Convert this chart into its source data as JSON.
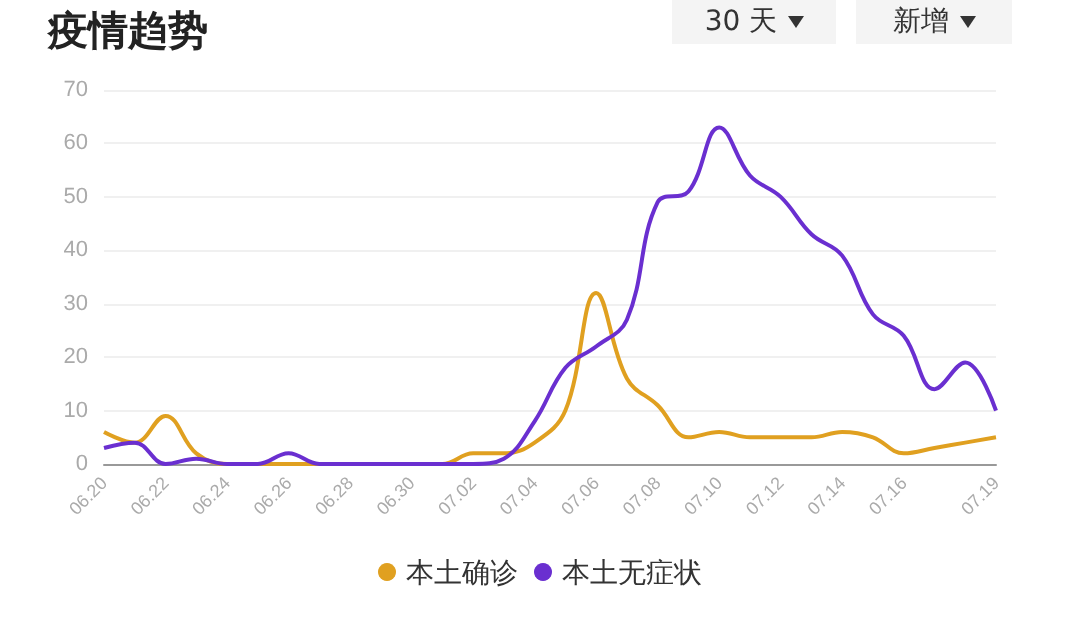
{
  "chart_data": {
    "type": "line",
    "title": "疫情趋势",
    "annotations": [
      "30 天",
      "新增"
    ],
    "categories": [
      "06.20",
      null,
      "06.22",
      null,
      "06.24",
      null,
      "06.26",
      null,
      "06.28",
      null,
      "06.30",
      null,
      "07.02",
      null,
      "07.04",
      null,
      "07.06",
      null,
      "07.08",
      null,
      "07.10",
      null,
      "07.12",
      null,
      "07.14",
      null,
      "07.16",
      null,
      null,
      "07.19"
    ],
    "series": [
      {
        "name": "本土确诊",
        "color": "#e0a020",
        "values": [
          6,
          4,
          9,
          2,
          0,
          0,
          0,
          0,
          0,
          0,
          0,
          0,
          2,
          2,
          4,
          10,
          32,
          16,
          11,
          5,
          6,
          5,
          5,
          5,
          6,
          5,
          2,
          3,
          4,
          5
        ]
      },
      {
        "name": "本土无症状",
        "color": "#6a2fd0",
        "values": [
          3,
          4,
          0,
          1,
          0,
          0,
          2,
          0,
          0,
          0,
          0,
          0,
          0,
          1,
          8,
          18,
          22,
          27,
          49,
          51,
          63,
          54,
          50,
          43,
          39,
          28,
          24,
          14,
          19,
          10
        ]
      }
    ],
    "ylim": [
      0,
      70
    ],
    "yticks": [
      0,
      10,
      20,
      30,
      40,
      50,
      60,
      70
    ],
    "grid": "y",
    "legend": "bottom",
    "marker": "none",
    "line_style": "solid"
  }
}
